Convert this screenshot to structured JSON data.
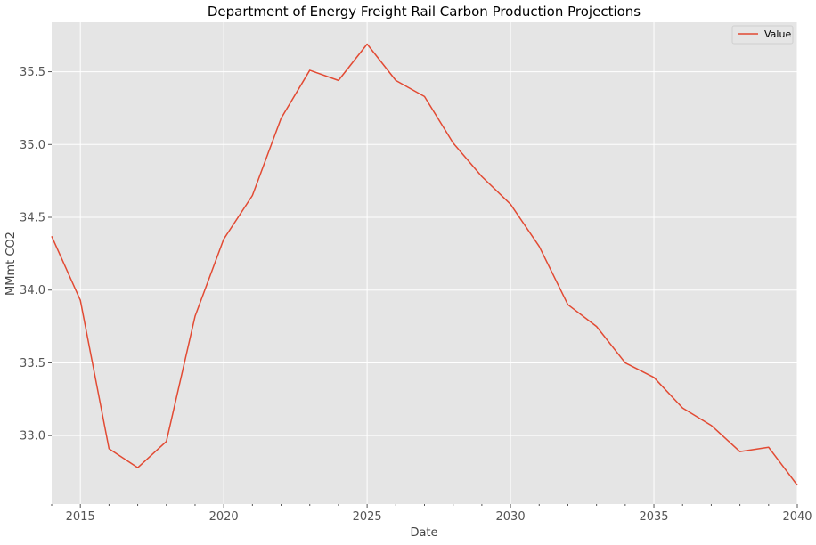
{
  "colors": {
    "plot_background": "#E5E5E5",
    "grid": "#FFFFFF",
    "series_line": "#E24A33",
    "tick": "#555555"
  },
  "chart_data": {
    "type": "line",
    "title": "Department of Energy Freight Rail Carbon Production Projections",
    "xlabel": "Date",
    "ylabel": "MMmt CO2",
    "xlim": [
      2014,
      2040
    ],
    "ylim": [
      32.53,
      35.84
    ],
    "grid": true,
    "legend_position": "top-right",
    "x_ticks": [
      2015,
      2020,
      2025,
      2030,
      2035,
      2040
    ],
    "y_ticks": [
      33.0,
      33.5,
      34.0,
      34.5,
      35.0,
      35.5
    ],
    "y_tick_labels": [
      "33.0",
      "33.5",
      "34.0",
      "34.5",
      "35.0",
      "35.5"
    ],
    "series": [
      {
        "name": "Value",
        "x": [
          2014,
          2015,
          2016,
          2017,
          2018,
          2019,
          2020,
          2021,
          2022,
          2023,
          2024,
          2025,
          2026,
          2027,
          2028,
          2029,
          2030,
          2031,
          2032,
          2033,
          2034,
          2035,
          2036,
          2037,
          2038,
          2039,
          2040
        ],
        "values": [
          34.37,
          33.93,
          32.91,
          32.78,
          32.96,
          33.82,
          34.35,
          34.65,
          35.18,
          35.51,
          35.44,
          35.69,
          35.44,
          35.33,
          35.01,
          34.78,
          34.59,
          34.3,
          33.9,
          33.75,
          33.5,
          33.4,
          33.19,
          33.07,
          32.89,
          32.92,
          32.66
        ]
      }
    ]
  }
}
